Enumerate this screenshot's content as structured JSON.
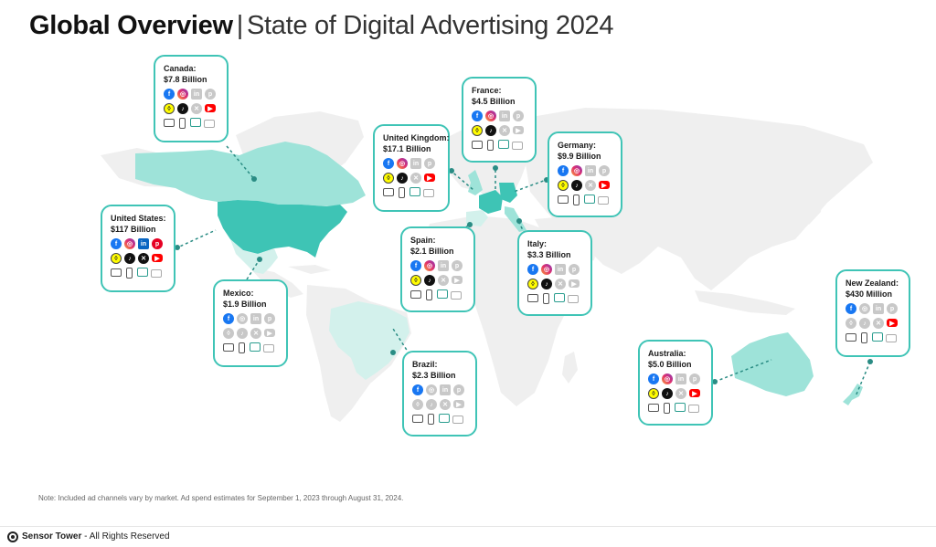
{
  "header": {
    "title_bold": "Global Overview",
    "separator": "|",
    "subtitle": "State of Digital Advertising 2024"
  },
  "colors": {
    "accent": "#3fc4b6",
    "dark_fill": "#3ec4b5",
    "light_fill": "#9ee3d9",
    "pale_fill": "#d3f1ec",
    "base_land": "#efefef"
  },
  "markets": [
    {
      "country": "Canada:",
      "spend": "$7.8 Billion",
      "channels": [
        "facebook",
        "instagram",
        "linkedin-off",
        "pinterest-off",
        "snapchat",
        "tiktok",
        "x-off",
        "youtube",
        "tv",
        "mobile",
        "ctv",
        "ooh"
      ]
    },
    {
      "country": "France:",
      "spend": "$4.5 Billion",
      "channels": [
        "facebook",
        "instagram",
        "linkedin-off",
        "pinterest-off",
        "snapchat",
        "tiktok",
        "x-off",
        "youtube-off",
        "tv",
        "mobile",
        "ctv",
        "ooh"
      ]
    },
    {
      "country": "United Kingdom:",
      "spend": "$17.1 Billion",
      "channels": [
        "facebook",
        "instagram",
        "linkedin-off",
        "pinterest-off",
        "snapchat",
        "tiktok",
        "x-off",
        "youtube",
        "tv",
        "mobile",
        "ctv",
        "ooh"
      ]
    },
    {
      "country": "Germany:",
      "spend": "$9.9 Billion",
      "channels": [
        "facebook",
        "instagram",
        "linkedin-off",
        "pinterest-off",
        "snapchat",
        "tiktok",
        "x-off",
        "youtube",
        "tv",
        "mobile",
        "ctv",
        "ooh"
      ]
    },
    {
      "country": "United States:",
      "spend": "$117 Billion",
      "channels": [
        "facebook",
        "instagram",
        "linkedin",
        "pinterest",
        "snapchat",
        "tiktok",
        "x",
        "youtube",
        "tv",
        "mobile",
        "ctv",
        "ooh"
      ]
    },
    {
      "country": "Spain:",
      "spend": "$2.1 Billion",
      "channels": [
        "facebook",
        "instagram",
        "linkedin-off",
        "pinterest-off",
        "snapchat",
        "tiktok",
        "x-off",
        "youtube-off",
        "tv",
        "mobile",
        "ctv",
        "ooh"
      ]
    },
    {
      "country": "Italy:",
      "spend": "$3.3 Billion",
      "channels": [
        "facebook",
        "instagram",
        "linkedin-off",
        "pinterest-off",
        "snapchat",
        "tiktok",
        "x-off",
        "youtube-off",
        "tv",
        "mobile",
        "ctv",
        "ooh"
      ]
    },
    {
      "country": "Mexico:",
      "spend": "$1.9 Billion",
      "channels": [
        "facebook",
        "instagram-off",
        "linkedin-off",
        "pinterest-off",
        "snapchat-off",
        "tiktok-off",
        "x-off",
        "youtube-off",
        "tv",
        "mobile",
        "ctv",
        "ooh"
      ]
    },
    {
      "country": "New Zealand:",
      "spend": "$430 Million",
      "channels": [
        "facebook",
        "instagram-off",
        "linkedin-off",
        "pinterest-off",
        "snapchat-off",
        "tiktok-off",
        "x-off",
        "youtube",
        "tv",
        "mobile",
        "ctv",
        "ooh"
      ]
    },
    {
      "country": "Brazil:",
      "spend": "$2.3 Billion",
      "channels": [
        "facebook",
        "instagram-off",
        "linkedin-off",
        "pinterest-off",
        "snapchat-off",
        "tiktok-off",
        "x-off",
        "youtube-off",
        "tv",
        "mobile",
        "ctv",
        "ooh"
      ]
    },
    {
      "country": "Australia:",
      "spend": "$5.0 Billion",
      "channels": [
        "facebook",
        "instagram",
        "linkedin-off",
        "pinterest-off",
        "snapchat",
        "tiktok",
        "x-off",
        "youtube",
        "tv",
        "mobile",
        "ctv",
        "ooh"
      ]
    }
  ],
  "icon_glyphs": {
    "facebook": "f",
    "instagram": "◎",
    "linkedin": "in",
    "pinterest": "p",
    "snapchat": "◊",
    "tiktok": "♪",
    "x": "✕",
    "youtube": "▶"
  },
  "note": "Note: Included ad channels vary by market. Ad spend estimates for September 1, 2023 through August 31, 2024.",
  "footer": {
    "brand": "Sensor Tower",
    "rights": " - All Rights Reserved"
  }
}
